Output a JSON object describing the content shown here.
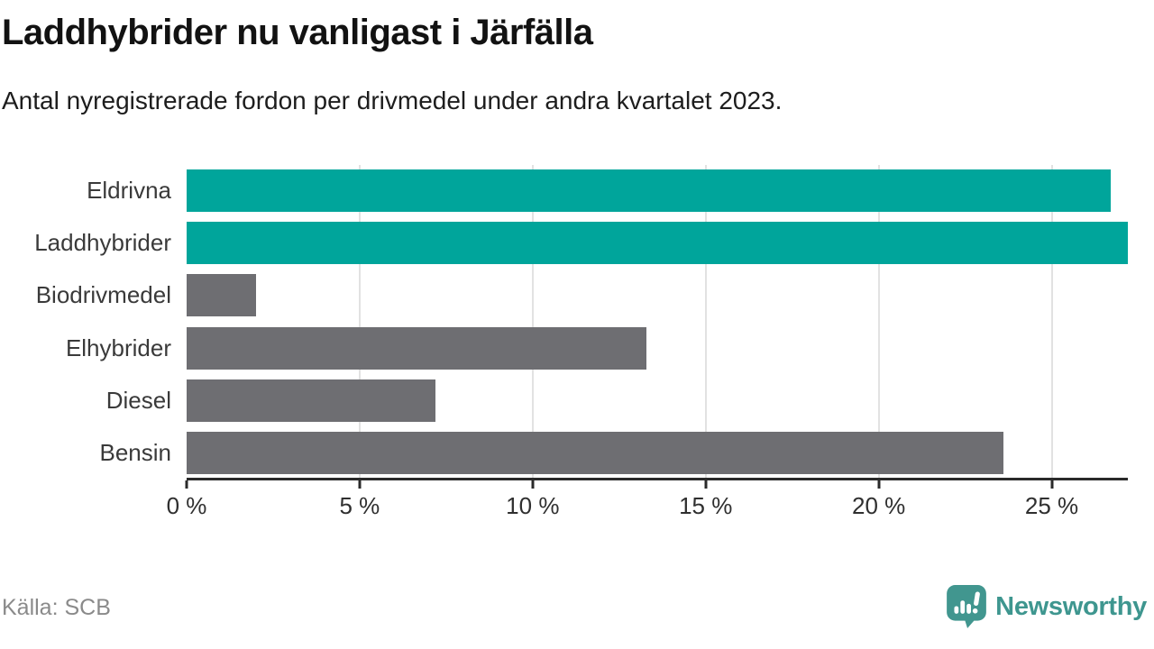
{
  "header": {
    "title": "Laddhybrider nu vanligast i Järfälla",
    "subtitle": "Antal nyregistrerade fordon per drivmedel under andra kvartalet 2023."
  },
  "chart_data": {
    "type": "bar",
    "orientation": "horizontal",
    "title": "Laddhybrider nu vanligast i Järfälla",
    "subtitle": "Antal nyregistrerade fordon per drivmedel under andra kvartalet 2023.",
    "categories": [
      "Eldrivna",
      "Laddhybrider",
      "Biodrivmedel",
      "Elhybrider",
      "Diesel",
      "Bensin"
    ],
    "values": [
      26.7,
      27.2,
      2.0,
      13.3,
      7.2,
      23.6
    ],
    "bar_colors": [
      "#00a59b",
      "#00a59b",
      "#6e6e72",
      "#6e6e72",
      "#6e6e72",
      "#6e6e72"
    ],
    "highlight_color": "#00a59b",
    "default_color": "#6e6e72",
    "xlabel": "",
    "ylabel": "",
    "xlim": [
      0,
      27.2
    ],
    "x_ticks": [
      0,
      5,
      10,
      15,
      20,
      25
    ],
    "tick_suffix": " %",
    "grid": true,
    "gridline_color": "#e2e2e2",
    "axis_color": "#2a2a2a",
    "legend": "none"
  },
  "footer": {
    "source": "Källa: SCB",
    "brand": "Newsworthy",
    "brand_color": "#3e968f"
  }
}
